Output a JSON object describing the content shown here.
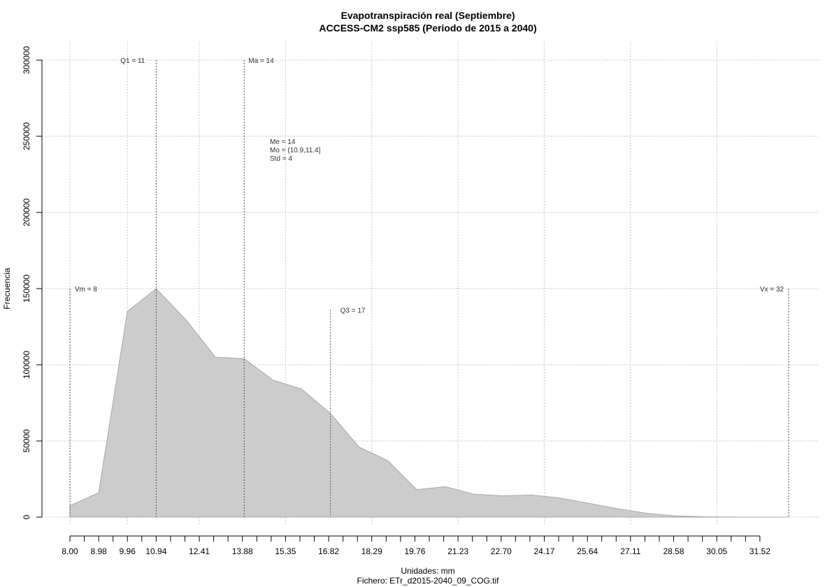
{
  "chart_data": {
    "type": "area",
    "title": "Evapotranspiración real (Septiembre)",
    "subtitle": "ACCESS-CM2 ssp585 (Periodo de 2015 a 2040)",
    "xlabel": "Unidades: mm",
    "ylabel": "Frecuencia",
    "footer": "Fichero: ETr_d2015-2040_09_COG.tif",
    "xlim": [
      8.0,
      32.5
    ],
    "ylim": [
      0,
      300000
    ],
    "grid": true,
    "x_tick_labels": [
      "8.00",
      "8.98",
      "9.96",
      "10.94",
      "12.41",
      "13.88",
      "15.35",
      "16.82",
      "18.29",
      "19.76",
      "21.23",
      "22.70",
      "24.17",
      "25.64",
      "27.11",
      "28.58",
      "30.05",
      "31.52"
    ],
    "y_tick_labels": [
      "0",
      "50000",
      "100000",
      "150000",
      "200000",
      "250000",
      "300000"
    ],
    "series": [
      {
        "x": [
          8.0,
          8.98,
          9.96,
          10.94,
          11.98,
          12.96,
          13.94,
          14.92,
          15.9,
          16.88,
          17.86,
          18.84,
          19.82,
          20.8,
          21.78,
          22.76,
          23.74,
          24.72,
          25.7,
          26.68,
          27.66,
          28.64,
          29.62,
          30.6,
          31.58,
          32.5
        ],
        "y": [
          7500,
          16000,
          135000,
          150000,
          129000,
          105000,
          104000,
          90000,
          84000,
          68000,
          46000,
          37000,
          18000,
          20000,
          15000,
          14000,
          14500,
          12500,
          9000,
          5500,
          2500,
          800,
          200,
          50,
          0,
          0
        ]
      }
    ],
    "annotations": {
      "vm": {
        "label": "Vm = 8",
        "x": 8.0,
        "y_top": 150000
      },
      "q1": {
        "label": "Q1 = 11",
        "x": 10.94,
        "y_top": 300000
      },
      "ma": {
        "label": "Ma = 14",
        "x": 13.94,
        "y_top": 300000
      },
      "q3": {
        "label": "Q3 = 17",
        "x": 16.88,
        "y_top": 136000
      },
      "vx": {
        "label": "Vx = 32",
        "x": 32.5,
        "y_top": 150000
      },
      "stats": [
        "Me = 14",
        "Mo = (10.9,11.4]",
        "Std = 4"
      ]
    },
    "colors": {
      "fill": "#cccccc",
      "edge": "#a8a8a8"
    }
  }
}
